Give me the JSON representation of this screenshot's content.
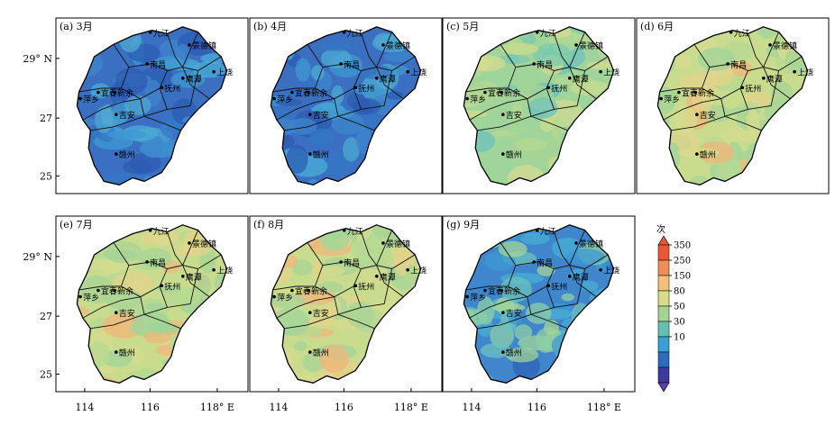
{
  "panels": [
    {
      "label": "(a) 3月",
      "palette": "blue_low"
    },
    {
      "label": "(b) 4月",
      "palette": "blue_low"
    },
    {
      "label": "(c) 5月",
      "palette": "mid"
    },
    {
      "label": "(d) 6月",
      "palette": "mid_high"
    },
    {
      "label": "(e) 7月",
      "palette": "mid_high"
    },
    {
      "label": "(f) 8月",
      "palette": "mid_high"
    },
    {
      "label": "(g) 9月",
      "palette": "blue_mid"
    }
  ],
  "cities": [
    {
      "name": "九江",
      "lon": 116.0,
      "lat": 29.7
    },
    {
      "name": "景德镇",
      "lon": 117.2,
      "lat": 29.3
    },
    {
      "name": "南昌",
      "lon": 115.9,
      "lat": 28.7
    },
    {
      "name": "鹰潭",
      "lon": 117.0,
      "lat": 28.25
    },
    {
      "name": "上饶",
      "lon": 117.95,
      "lat": 28.45
    },
    {
      "name": "宜春",
      "lon": 114.4,
      "lat": 27.8
    },
    {
      "name": "新余",
      "lon": 114.9,
      "lat": 27.8
    },
    {
      "name": "萍乡",
      "lon": 113.85,
      "lat": 27.6
    },
    {
      "name": "抚州",
      "lon": 116.35,
      "lat": 27.95
    },
    {
      "name": "吉安",
      "lon": 114.95,
      "lat": 27.1
    },
    {
      "name": "赣州",
      "lon": 114.95,
      "lat": 25.85
    }
  ],
  "axes": {
    "x_ticks": [
      "114",
      "116",
      "118° E"
    ],
    "y_ticks": [
      "29° N",
      "27",
      "25"
    ]
  },
  "colorbar": {
    "title": "次",
    "ticks": [
      "350",
      "250",
      "150",
      "80",
      "50",
      "30",
      "10"
    ],
    "colors": [
      "#e8573a",
      "#f08c55",
      "#f4c07a",
      "#d7dc8c",
      "#a6d392",
      "#62c1b4",
      "#3a9fd4",
      "#2e6bbf",
      "#3b3a9e"
    ]
  }
}
